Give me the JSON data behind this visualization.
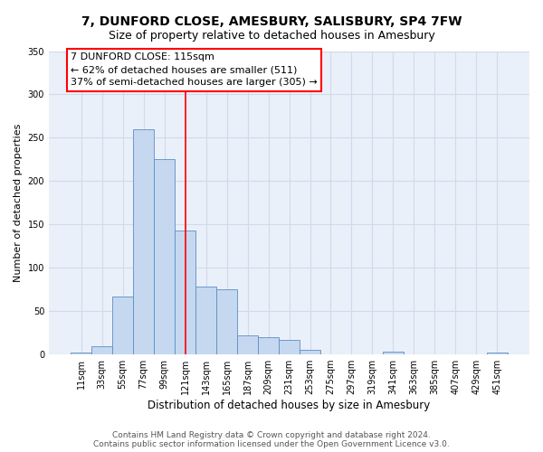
{
  "title": "7, DUNFORD CLOSE, AMESBURY, SALISBURY, SP4 7FW",
  "subtitle": "Size of property relative to detached houses in Amesbury",
  "xlabel": "Distribution of detached houses by size in Amesbury",
  "ylabel": "Number of detached properties",
  "categories": [
    "11sqm",
    "33sqm",
    "55sqm",
    "77sqm",
    "99sqm",
    "121sqm",
    "143sqm",
    "165sqm",
    "187sqm",
    "209sqm",
    "231sqm",
    "253sqm",
    "275sqm",
    "297sqm",
    "319sqm",
    "341sqm",
    "363sqm",
    "385sqm",
    "407sqm",
    "429sqm",
    "451sqm"
  ],
  "values": [
    2,
    9,
    67,
    260,
    225,
    143,
    78,
    75,
    22,
    20,
    17,
    5,
    0,
    0,
    0,
    3,
    0,
    0,
    0,
    0,
    2
  ],
  "bar_color": "#c5d8f0",
  "bar_edge_color": "#5b8ec4",
  "vline_color": "red",
  "vline_x": 5.0,
  "annotation_line1": "7 DUNFORD CLOSE: 115sqm",
  "annotation_line2": "← 62% of detached houses are smaller (511)",
  "annotation_line3": "37% of semi-detached houses are larger (305) →",
  "ylim": [
    0,
    350
  ],
  "yticks": [
    0,
    50,
    100,
    150,
    200,
    250,
    300,
    350
  ],
  "footer": "Contains HM Land Registry data © Crown copyright and database right 2024.\nContains public sector information licensed under the Open Government Licence v3.0.",
  "bg_color": "#eaf0fa",
  "grid_color": "#d0daea",
  "title_fontsize": 10,
  "subtitle_fontsize": 9,
  "xlabel_fontsize": 8.5,
  "ylabel_fontsize": 8,
  "tick_fontsize": 7,
  "footer_fontsize": 6.5,
  "annot_fontsize": 8
}
